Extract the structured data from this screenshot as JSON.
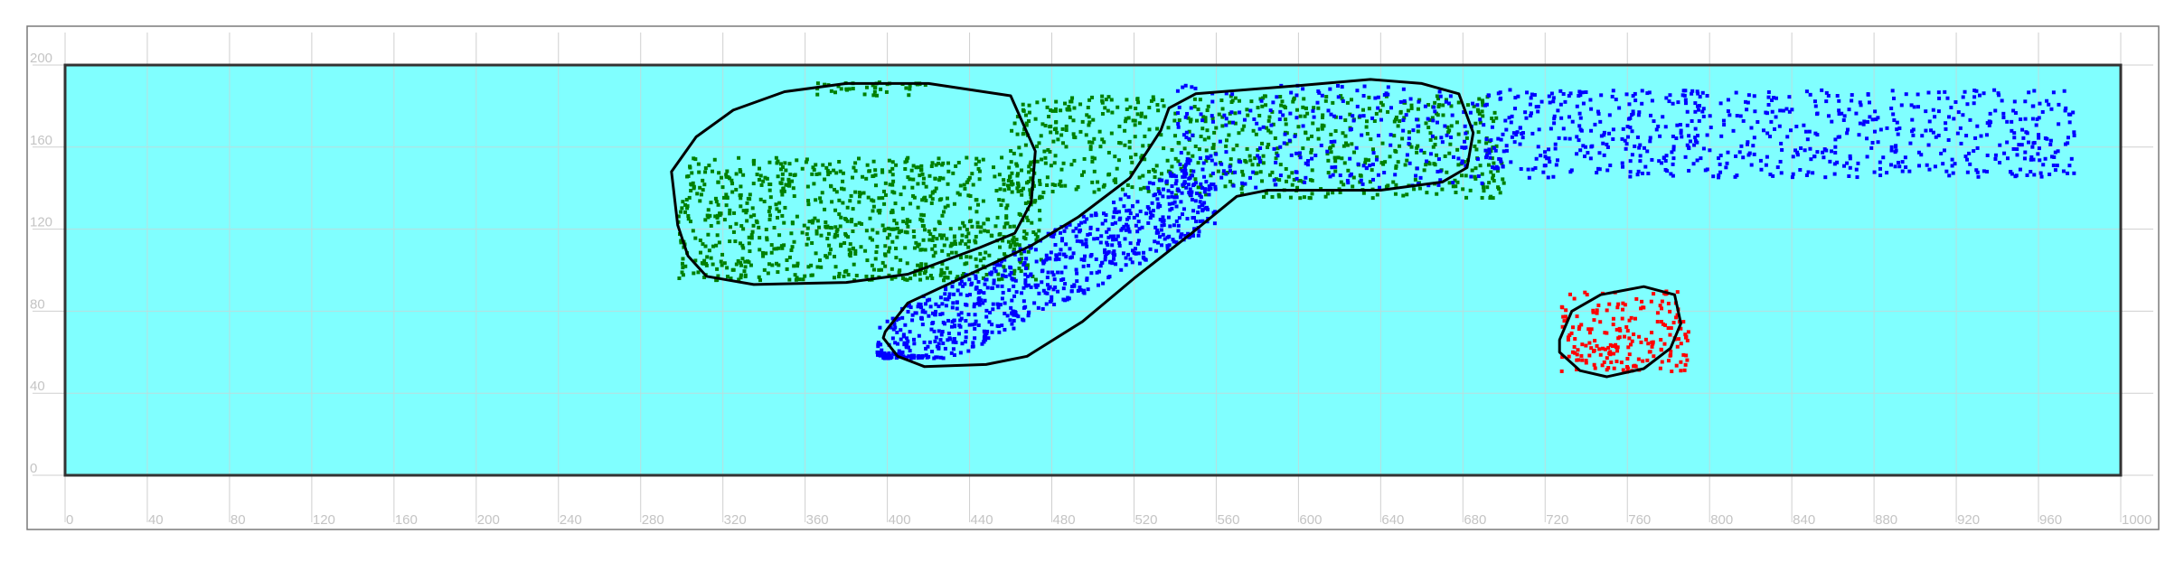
{
  "chart_data": {
    "type": "scatter",
    "title": "",
    "xlabel": "",
    "ylabel": "",
    "xlim": [
      0,
      1000
    ],
    "ylim": [
      0,
      200
    ],
    "x_ticks": [
      0,
      40,
      80,
      120,
      160,
      200,
      240,
      280,
      320,
      360,
      400,
      440,
      480,
      520,
      560,
      600,
      640,
      680,
      720,
      760,
      800,
      840,
      880,
      920,
      960,
      1000
    ],
    "y_ticks": [
      0,
      40,
      80,
      120,
      160,
      200
    ],
    "grid": true,
    "legend": "none",
    "plot_background": "#80FFFF",
    "tick_label_color": "#c4c4c4",
    "grid_color": "#cfcfcf",
    "region": {
      "x": [
        0,
        1000
      ],
      "y": [
        0,
        200
      ]
    },
    "series": [
      {
        "color": "#008000",
        "clusters": [
          {
            "x_range": [
              298,
              475
            ],
            "y_range": [
              95,
              155
            ],
            "n": 900
          },
          {
            "x_range": [
              365,
              420
            ],
            "y_range": [
              185,
              192
            ],
            "n": 40
          },
          {
            "x_range": [
              460,
              700
            ],
            "y_range": [
              135,
              185
            ],
            "n": 700
          }
        ]
      },
      {
        "color": "#0000FF",
        "clusters": [
          {
            "x_range": [
              395,
              560
            ],
            "y_range": [
              57,
              140
            ],
            "n": 800,
            "trend": "diagonal"
          },
          {
            "x_range": [
              540,
              690
            ],
            "y_range": [
              140,
              190
            ],
            "n": 250
          },
          {
            "x_range": [
              690,
              980
            ],
            "y_range": [
              145,
              188
            ],
            "n": 700
          }
        ]
      },
      {
        "color": "#FF0000",
        "clusters": [
          {
            "x_range": [
              727,
              790
            ],
            "y_range": [
              50,
              90
            ],
            "n": 200
          }
        ]
      }
    ],
    "hulls": [
      {
        "color": "#000000",
        "points": [
          [
            295,
            148
          ],
          [
            307,
            165
          ],
          [
            325,
            178
          ],
          [
            350,
            187
          ],
          [
            380,
            191
          ],
          [
            420,
            191
          ],
          [
            460,
            185
          ],
          [
            472,
            158
          ],
          [
            470,
            133
          ],
          [
            462,
            118
          ],
          [
            445,
            111
          ],
          [
            410,
            98
          ],
          [
            380,
            94
          ],
          [
            335,
            93
          ],
          [
            312,
            97
          ],
          [
            303,
            107
          ],
          [
            298,
            122
          ]
        ]
      },
      {
        "color": "#000000",
        "points": [
          [
            399,
            70
          ],
          [
            410,
            84
          ],
          [
            440,
            98
          ],
          [
            470,
            112
          ],
          [
            493,
            126
          ],
          [
            518,
            145
          ],
          [
            533,
            168
          ],
          [
            537,
            179
          ],
          [
            550,
            186
          ],
          [
            600,
            190
          ],
          [
            635,
            193
          ],
          [
            660,
            191
          ],
          [
            678,
            186
          ],
          [
            685,
            167
          ],
          [
            682,
            150
          ],
          [
            670,
            143
          ],
          [
            640,
            139
          ],
          [
            585,
            139
          ],
          [
            570,
            136
          ],
          [
            548,
            118
          ],
          [
            520,
            96
          ],
          [
            495,
            75
          ],
          [
            468,
            58
          ],
          [
            448,
            54
          ],
          [
            418,
            53
          ],
          [
            405,
            58
          ],
          [
            398,
            67
          ]
        ]
      },
      {
        "color": "#000000",
        "points": [
          [
            727,
            66
          ],
          [
            733,
            80
          ],
          [
            747,
            88
          ],
          [
            768,
            92
          ],
          [
            783,
            88
          ],
          [
            786,
            74
          ],
          [
            781,
            62
          ],
          [
            768,
            52
          ],
          [
            750,
            48
          ],
          [
            737,
            51
          ],
          [
            727,
            60
          ]
        ]
      }
    ]
  }
}
